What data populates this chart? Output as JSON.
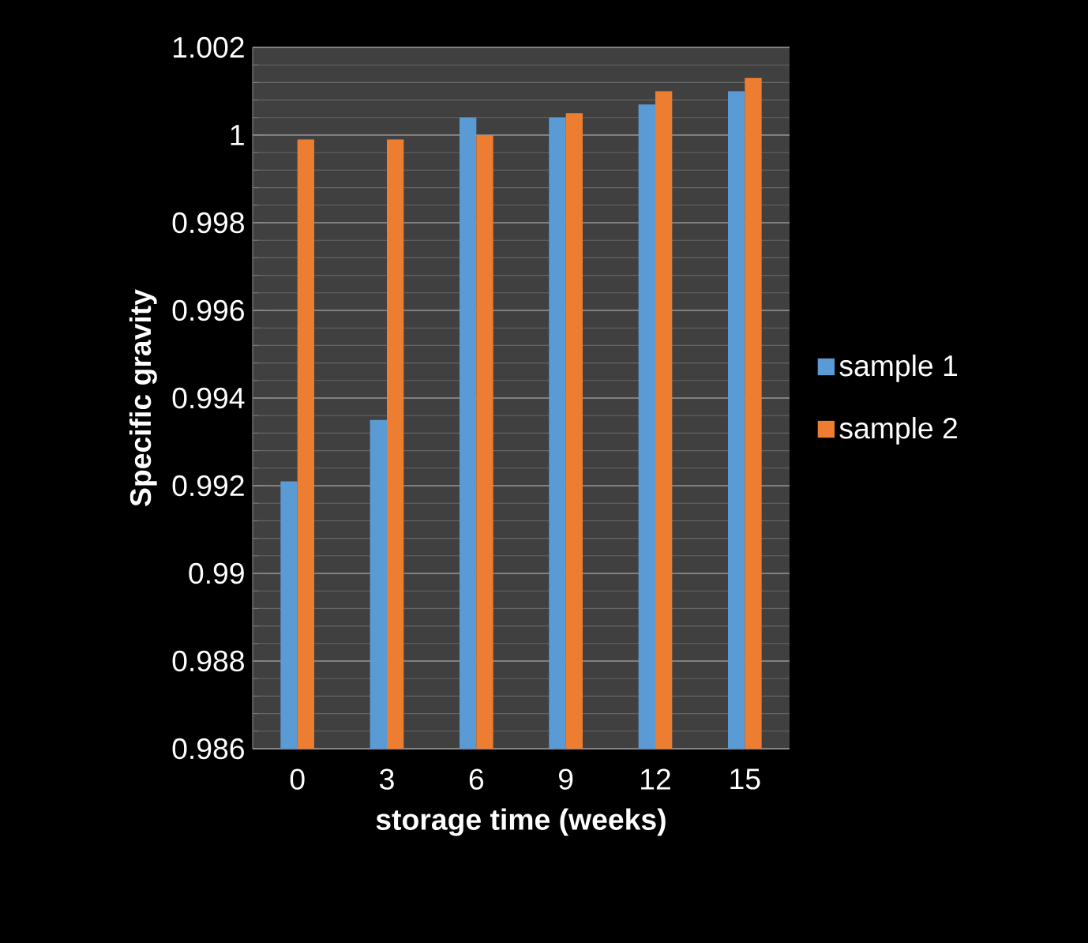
{
  "chart_data": {
    "type": "bar",
    "xlabel": "storage time  (weeks)",
    "ylabel": "Specific gravity",
    "categories": [
      "0",
      "3",
      "6",
      "9",
      "12",
      "15"
    ],
    "series": [
      {
        "name": "sample 1",
        "color": "#5b9bd5",
        "values": [
          0.9921,
          0.9935,
          1.0004,
          1.0004,
          1.0007,
          1.001
        ]
      },
      {
        "name": "sample 2",
        "color": "#ed7d31",
        "values": [
          0.9999,
          0.9999,
          1.0,
          1.0005,
          1.001,
          1.0013
        ]
      }
    ],
    "ylim": [
      0.986,
      1.002
    ],
    "yticks": [
      0.986,
      0.988,
      0.99,
      0.992,
      0.994,
      0.996,
      0.998,
      1,
      1.002
    ],
    "grid": "y",
    "legend": "right"
  }
}
